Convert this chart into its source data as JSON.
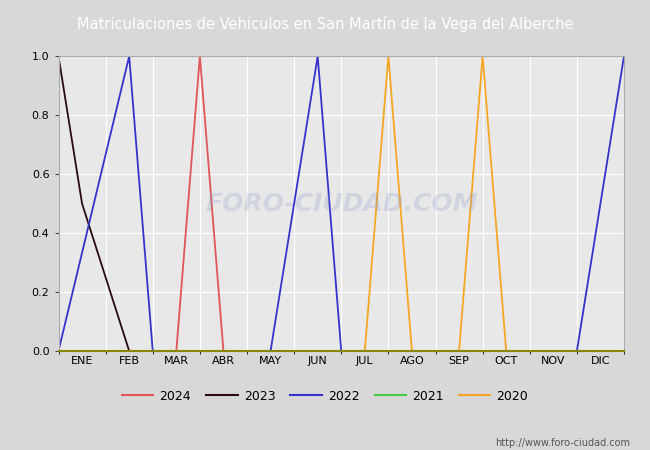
{
  "title": "Matriculaciones de Vehiculos en San Martín de la Vega del Alberche",
  "title_bg_color": "#4169b8",
  "title_text_color": "#ffffff",
  "bg_color": "#d8d8d8",
  "plot_bg_color": "#e8e8e8",
  "grid_color": "#ffffff",
  "ylim": [
    0.0,
    1.0
  ],
  "months": [
    "ENE",
    "FEB",
    "MAR",
    "ABR",
    "MAY",
    "JUN",
    "JUL",
    "AGO",
    "SEP",
    "OCT",
    "NOV",
    "DIC"
  ],
  "watermark": "FORO-CIUDAD.COM",
  "url": "http://www.foro-ciudad.com",
  "series": {
    "2024": {
      "color": "#e05555",
      "data": {
        "x": [
          1.5,
          2.5,
          3.0,
          3.5,
          4.5
        ],
        "y": [
          0,
          0,
          1,
          0,
          0
        ]
      }
    },
    "2023": {
      "color": "#2a0a0a",
      "data": {
        "x": [
          0,
          0.5,
          1.5,
          2.0
        ],
        "y": [
          1,
          0.5,
          0,
          0
        ]
      }
    },
    "2022": {
      "color": "#3333cc",
      "data": {
        "x": [
          0,
          1.5,
          2.0,
          4.5,
          5.5,
          6.0,
          6.5,
          11.0,
          12
        ],
        "y": [
          0,
          1,
          0,
          0,
          1,
          0,
          0,
          0,
          1
        ]
      }
    },
    "2021": {
      "color": "#44cc44",
      "data": {
        "x": [
          0,
          12
        ],
        "y": [
          0,
          0
        ]
      }
    },
    "2020": {
      "color": "#f5a623",
      "data": {
        "x": [
          6.5,
          7.0,
          7.5,
          8.5,
          9.0,
          9.5,
          10.5
        ],
        "y": [
          0,
          1,
          0,
          0,
          1,
          0,
          0
        ]
      }
    }
  },
  "legend_order": [
    "2024",
    "2023",
    "2022",
    "2021",
    "2020"
  ],
  "tick_positions": [
    0.5,
    1.5,
    2.5,
    3.5,
    4.5,
    5.5,
    6.5,
    7.5,
    8.5,
    9.5,
    10.5,
    11.5
  ]
}
